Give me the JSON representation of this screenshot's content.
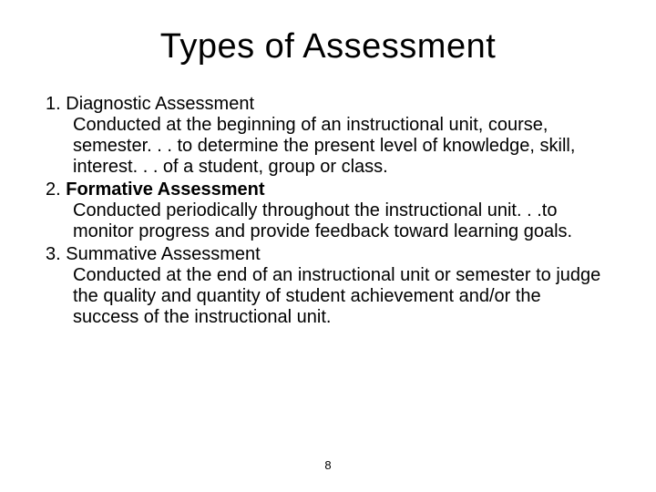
{
  "title": "Types of Assessment",
  "items": [
    {
      "number": "1.",
      "heading": "Diagnostic Assessment",
      "heading_bold": false,
      "body": "Conducted at the beginning of an instructional unit, course, semester. . . to determine the present level of knowledge, skill, interest. . . of a student, group or class."
    },
    {
      "number": "2.",
      "heading": "Formative Assessment",
      "heading_bold": true,
      "body": "Conducted periodically throughout the instructional unit. . .to monitor progress and provide feedback toward learning goals."
    },
    {
      "number": "3.",
      "heading": "Summative Assessment",
      "heading_bold": false,
      "body": "Conducted at the end of an instructional unit or semester to judge the quality and quantity of student achievement and/or the success of the instructional unit."
    }
  ],
  "page_number": "8",
  "colors": {
    "background": "#ffffff",
    "text": "#000000"
  },
  "typography": {
    "title_fontsize": 38,
    "body_fontsize": 20,
    "page_number_fontsize": 13,
    "font_family": "Arial"
  }
}
